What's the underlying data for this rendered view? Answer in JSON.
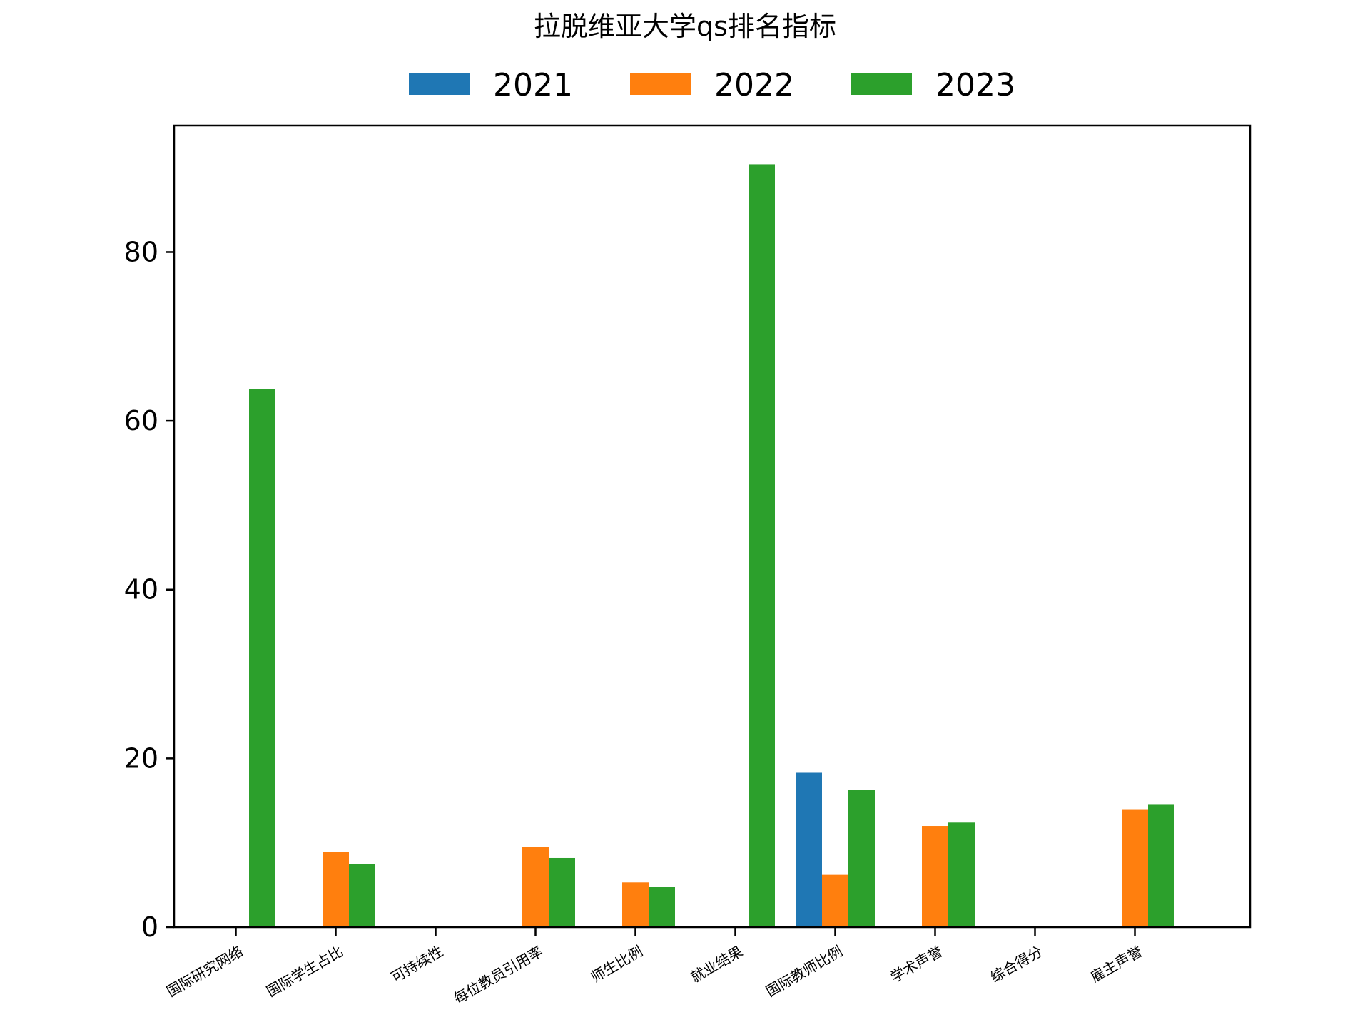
{
  "chart_data": {
    "type": "bar",
    "title": "拉脱维亚大学qs排名指标",
    "xlabel": "",
    "ylabel": "",
    "categories": [
      "国际研究网络",
      "国际学生占比",
      "可持续性",
      "每位教员引用率",
      "师生比例",
      "就业结果",
      "国际教师比例",
      "学术声誉",
      "综合得分",
      "雇主声誉"
    ],
    "series": [
      {
        "name": "2021",
        "color": "#1f77b4",
        "values": [
          0,
          0,
          0,
          0,
          0,
          0,
          18.3,
          0,
          0,
          0
        ]
      },
      {
        "name": "2022",
        "color": "#ff7f0e",
        "values": [
          0,
          8.9,
          0,
          9.5,
          5.3,
          0,
          6.2,
          12.0,
          0,
          13.9
        ]
      },
      {
        "name": "2023",
        "color": "#2ca02c",
        "values": [
          63.8,
          7.5,
          0,
          8.2,
          4.8,
          90.4,
          16.3,
          12.4,
          0,
          14.5
        ]
      }
    ],
    "ylim": [
      0,
      95
    ],
    "yticks": [
      0,
      20,
      40,
      60,
      80
    ],
    "grid": false,
    "legend_position": "top-center"
  }
}
